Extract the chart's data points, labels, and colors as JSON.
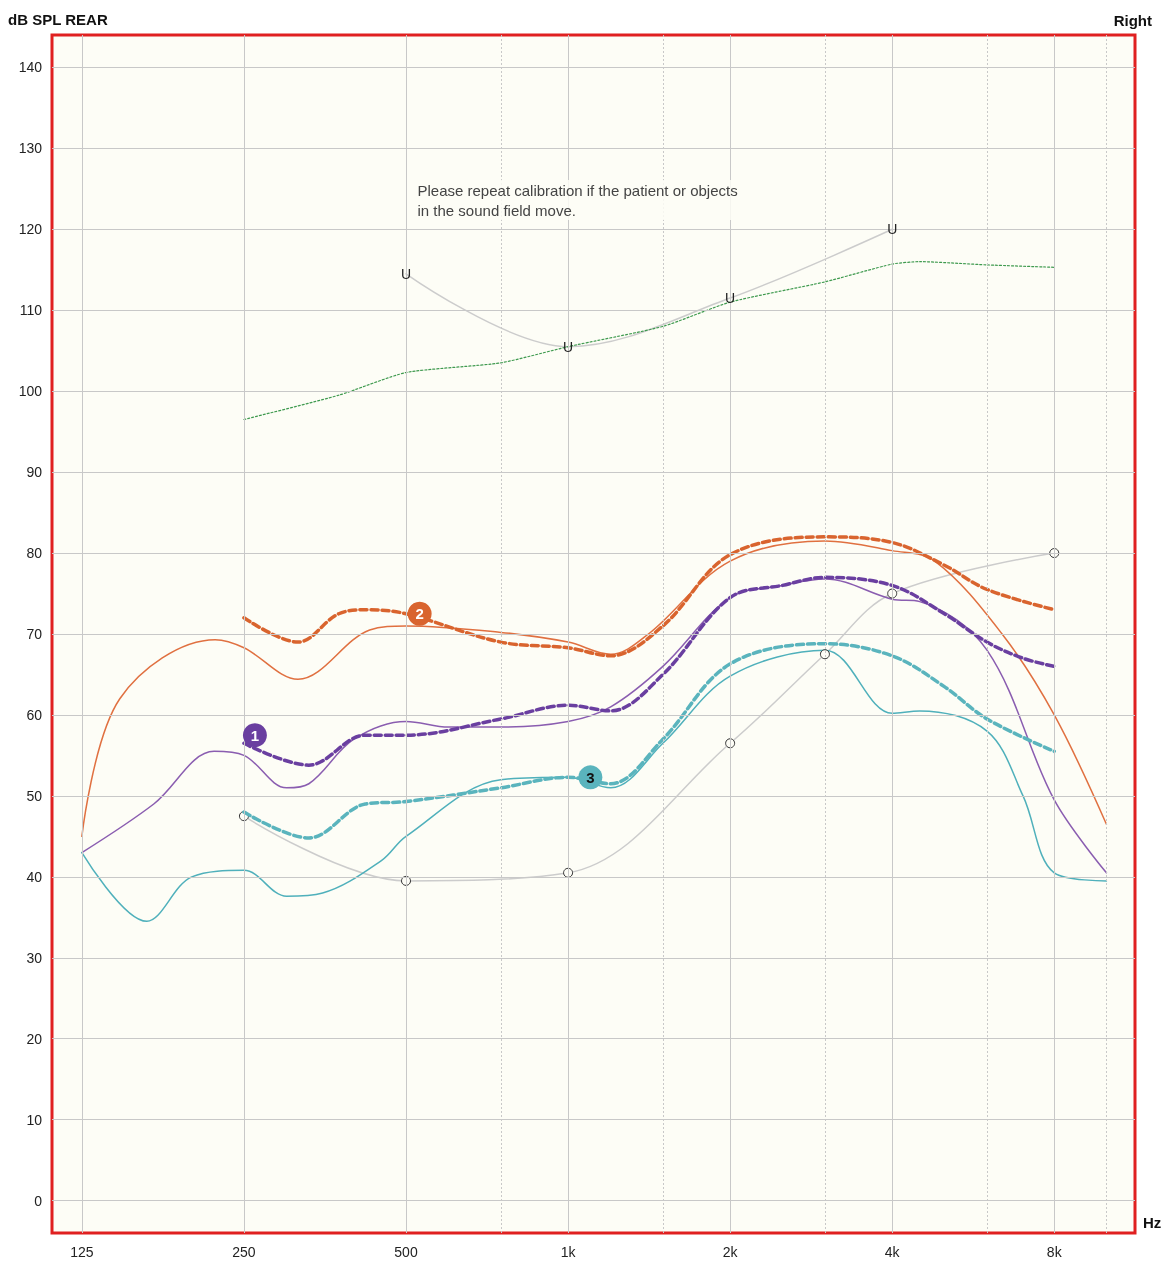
{
  "chart_data": {
    "type": "line",
    "title": "Right",
    "ylabel": "dB SPL REAR",
    "xlabel": "Hz",
    "log": "x",
    "xlim": [
      110,
      11300
    ],
    "xticks": [
      125,
      250,
      500,
      {
        "value": 750,
        "label": null
      },
      {
        "value": 1000,
        "label": "1k"
      },
      {
        "value": 1500,
        "label": null
      },
      {
        "value": 2000,
        "label": "2k"
      },
      {
        "value": 3000,
        "label": null
      },
      {
        "value": 4000,
        "label": "4k"
      },
      {
        "value": 6000,
        "label": null
      },
      {
        "value": 8000,
        "label": "8k"
      },
      {
        "value": 10000,
        "label": null
      }
    ],
    "ylim": [
      -4,
      144
    ],
    "yticks": [
      0,
      10,
      20,
      30,
      40,
      50,
      60,
      70,
      80,
      90,
      100,
      110,
      120,
      130,
      140
    ],
    "grid": true,
    "series": [
      {
        "color": "#cccccc",
        "marker": "circle",
        "line_style": "solid",
        "x": [
          250,
          500,
          1000,
          2000,
          3000,
          4000,
          8000
        ],
        "values": [
          47.5,
          39.5,
          40.5,
          56.5,
          67.5,
          75,
          80
        ]
      },
      {
        "color": "#cccccc",
        "marker": "none",
        "line_style": "solid",
        "x": [
          500,
          1000,
          2000,
          4000
        ],
        "values": [
          114.5,
          105.5,
          111.5,
          120
        ]
      },
      {
        "color": "#3f9a4f",
        "marker": "none",
        "line_style": "dotted",
        "x": [
          250,
          375,
          500,
          750,
          1000,
          1500,
          2000,
          3000,
          4000,
          4500,
          6000,
          8000
        ],
        "values": [
          96.5,
          99.5,
          102.3,
          103.5,
          105.5,
          108,
          111,
          113.5,
          115.7,
          116,
          115.6,
          115.3
        ]
      },
      {
        "color": "#e07040",
        "marker": "none",
        "line_style": "solid",
        "x": [
          125,
          147,
          221,
          250,
          315,
          428,
          500,
          750,
          1000,
          1200,
          1410,
          2000,
          3000,
          4000,
          4800,
          6400,
          8000,
          10000
        ],
        "values": [
          45,
          62,
          69.3,
          68.3,
          64.4,
          70.5,
          71,
          70.2,
          69,
          67.5,
          70,
          79,
          81.5,
          80.3,
          79,
          70,
          60,
          46.5
        ]
      },
      {
        "color": "#d9642e",
        "marker": "none",
        "line_style": "dashed",
        "x": [
          250,
          315,
          375,
          425,
          500,
          750,
          1000,
          1200,
          1500,
          2000,
          3000,
          4000,
          5000,
          6000,
          8000
        ],
        "values": [
          72,
          69,
          72.5,
          73,
          72.5,
          69,
          68.3,
          67.3,
          71,
          79.8,
          82,
          81.3,
          78.5,
          75.5,
          73
        ]
      },
      {
        "color": "#8a5db0",
        "marker": "none",
        "line_style": "solid",
        "x": [
          125,
          170,
          220,
          250,
          300,
          330,
          400,
          500,
          600,
          750,
          1000,
          1200,
          1500,
          2000,
          2500,
          3000,
          4000,
          4500,
          6000,
          8000,
          10000
        ],
        "values": [
          43,
          49,
          55.5,
          55,
          51,
          51.5,
          57,
          59.2,
          58.5,
          58.5,
          59.2,
          61,
          66,
          74.5,
          76,
          76.8,
          74.3,
          74,
          68,
          49.5,
          40.5
        ]
      },
      {
        "color": "#6a3fa0",
        "marker": "none",
        "line_style": "dashed",
        "x": [
          250,
          330,
          420,
          500,
          750,
          1000,
          1200,
          1500,
          2000,
          2500,
          3000,
          4000,
          5000,
          6000,
          7000,
          8000
        ],
        "values": [
          56.5,
          53.8,
          57.5,
          57.5,
          59.5,
          61.2,
          60.5,
          65,
          74.5,
          76,
          77,
          76,
          72.5,
          69,
          67,
          66
        ]
      },
      {
        "color": "#4fb0bb",
        "marker": "none",
        "line_style": "solid",
        "x": [
          125,
          165,
          200,
          250,
          300,
          350,
          450,
          500,
          750,
          1000,
          1200,
          1500,
          2000,
          3000,
          4000,
          4500,
          6000,
          7000,
          8000,
          10000
        ],
        "values": [
          43,
          34.5,
          40,
          40.8,
          37.6,
          38,
          42,
          45,
          52,
          52.3,
          51,
          56.5,
          64.8,
          68,
          60.2,
          60.5,
          58,
          50,
          40.5,
          39.5
        ]
      },
      {
        "color": "#5ab4bd",
        "marker": "none",
        "line_style": "dashed",
        "x": [
          250,
          330,
          420,
          500,
          750,
          1000,
          1200,
          1500,
          2000,
          3000,
          4000,
          5000,
          6000,
          8000
        ],
        "values": [
          48,
          44.8,
          49,
          49.3,
          51,
          52.3,
          51.5,
          57,
          66.3,
          68.8,
          67.3,
          63.5,
          59.5,
          55.5
        ]
      }
    ],
    "annotations": [
      {
        "text": "U",
        "x": 500,
        "y": 114.5
      },
      {
        "text": "U",
        "x": 1000,
        "y": 105.5
      },
      {
        "text": "U",
        "x": 2000,
        "y": 111.5
      },
      {
        "text": "U",
        "x": 4000,
        "y": 120
      },
      {
        "text": "1",
        "x": 262,
        "y": 57.5
      },
      {
        "text": "2",
        "x": 530,
        "y": 72.5
      },
      {
        "text": "3",
        "x": 1100,
        "y": 52.3
      },
      "Please repeat calibration if the patient or objects in the sound field move."
    ]
  }
}
